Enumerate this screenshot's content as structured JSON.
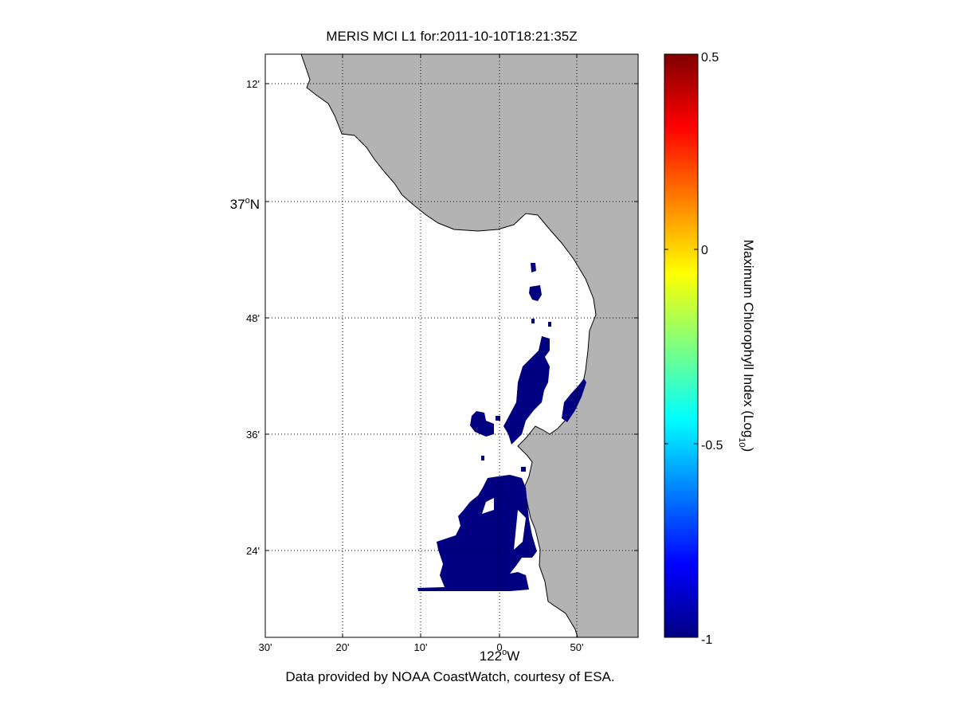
{
  "title": "MERIS MCI L1 for:2011-10-10T18:21:35Z",
  "footer": "Data provided by NOAA CoastWatch, courtesy of ESA.",
  "colors": {
    "land": "#b3b3b3",
    "ocean": "#ffffff",
    "bloom": "#000080",
    "grid": "#000000",
    "colormap": "jet"
  },
  "map": {
    "y_axis": {
      "ticks": [
        {
          "label": "12'",
          "sup": "",
          "suffix": "",
          "major": false
        },
        {
          "label": "37",
          "sup": "o",
          "suffix": "N",
          "major": true
        },
        {
          "label": "48'",
          "sup": "",
          "suffix": "",
          "major": false
        },
        {
          "label": "36'",
          "sup": "",
          "suffix": "",
          "major": false
        },
        {
          "label": "24'",
          "sup": "",
          "suffix": "",
          "major": false
        }
      ]
    },
    "x_axis": {
      "ticks": [
        {
          "label": "30'"
        },
        {
          "label": "20'"
        },
        {
          "label": "10'"
        },
        {
          "label": "0"
        },
        {
          "label": "50'"
        }
      ],
      "major_label": {
        "main": "122",
        "sup": "o",
        "suffix": "W"
      }
    },
    "grid": "dotted"
  },
  "colorbar": {
    "label_main": "Maximum Chlorophyll Index (Log",
    "label_sub": "10",
    "label_end": ")",
    "range": [
      -1,
      0.5
    ],
    "ticks": [
      {
        "value": 0.5,
        "label": "0.5"
      },
      {
        "value": 0,
        "label": "0"
      },
      {
        "value": -0.5,
        "label": "-0.5"
      },
      {
        "value": -1,
        "label": "-1"
      }
    ]
  }
}
